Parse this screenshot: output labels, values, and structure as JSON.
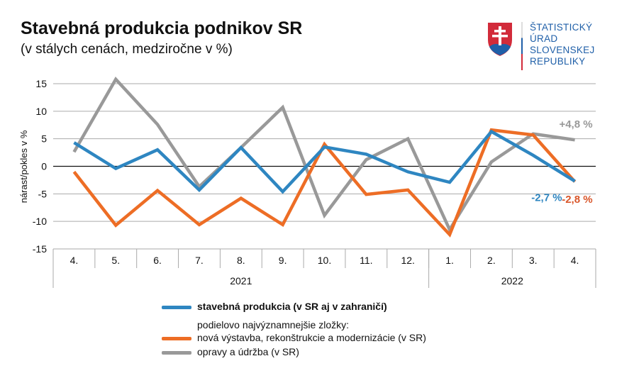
{
  "header": {
    "title": "Stavebná produkcia podnikov SR",
    "subtitle": "(v stálych cenách, medziročne v %)"
  },
  "logo": {
    "lines": [
      "ŠTATISTICKÝ",
      "ÚRAD",
      "SLOVENSKEJ",
      "REPUBLIKY"
    ],
    "color": "#1f5fa8"
  },
  "chart_data": {
    "type": "line",
    "title": "Stavebná produkcia podnikov SR",
    "subtitle": "(v stálych cenách, medziročne v %)",
    "ylabel": "nárast/pokles v %",
    "xlabel": "",
    "ylim": [
      -15,
      15
    ],
    "yticks": [
      15,
      10,
      5,
      0,
      -5,
      -10,
      -15
    ],
    "grid": true,
    "categories": [
      "4.",
      "5.",
      "6.",
      "7.",
      "8.",
      "9.",
      "10.",
      "11.",
      "12.",
      "1.",
      "2.",
      "3.",
      "4."
    ],
    "year_groups": [
      {
        "label": "2021",
        "count": 9
      },
      {
        "label": "2022",
        "count": 4
      }
    ],
    "series": [
      {
        "name": "stavebná produkcia (v SR aj v zahraničí)",
        "color": "#2e86c1",
        "values": [
          4.3,
          -0.4,
          3.0,
          -4.3,
          3.4,
          -4.6,
          3.5,
          2.2,
          -1.0,
          -2.9,
          6.3,
          2.0,
          -2.7
        ],
        "end_label": "-2,7 %"
      },
      {
        "name": "nová výstavba, rekonštrukcie a modernizácie (v SR)",
        "color": "#ed6d25",
        "values": [
          -1.0,
          -10.7,
          -4.4,
          -10.6,
          -5.8,
          -10.6,
          4.0,
          -5.1,
          -4.3,
          -12.4,
          6.6,
          5.7,
          -2.8
        ],
        "end_label": "-2,8 %"
      },
      {
        "name": "opravy a údržba (v SR)",
        "color": "#999999",
        "values": [
          2.6,
          15.8,
          7.6,
          -3.7,
          3.4,
          10.7,
          -8.9,
          1.2,
          5.0,
          -11.5,
          0.8,
          5.9,
          4.8
        ],
        "end_label": "+4,8 %"
      }
    ],
    "legend_subheading": "podielovo najvýznamnejšie zložky:",
    "legend_position": "bottom"
  }
}
